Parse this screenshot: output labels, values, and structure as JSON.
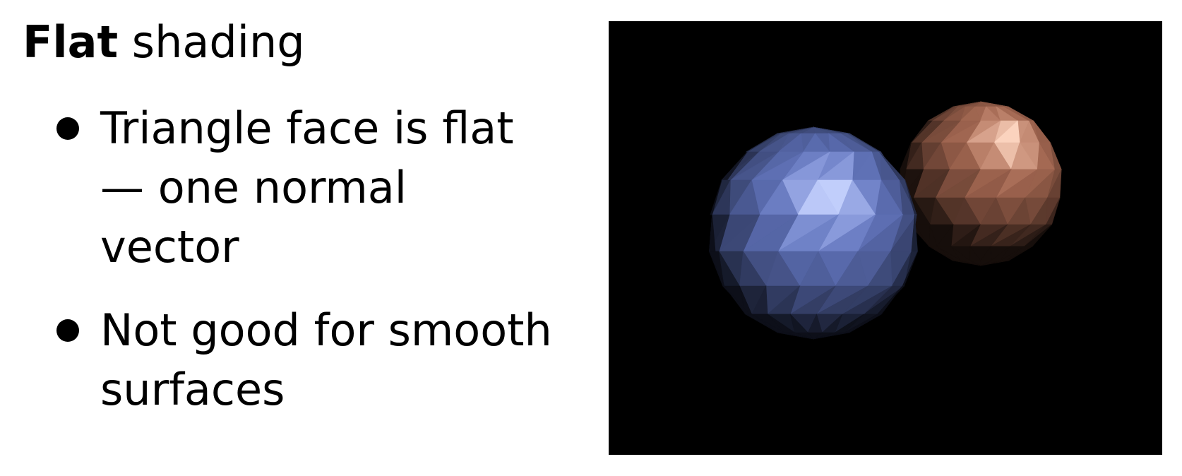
{
  "slide": {
    "title_bold": "Flat",
    "title_rest": " shading",
    "bullets": [
      {
        "text": "Triangle face is flat — one normal vector"
      },
      {
        "text": "Not good for smooth surfaces"
      }
    ]
  },
  "render": {
    "background_color": "#000000",
    "spheres": [
      {
        "name": "blue-sphere",
        "base_color": "#6a7fd0",
        "highlight_color": "#c8d4ff"
      },
      {
        "name": "copper-sphere",
        "base_color": "#b8735a",
        "highlight_color": "#ffd9c4"
      }
    ]
  }
}
